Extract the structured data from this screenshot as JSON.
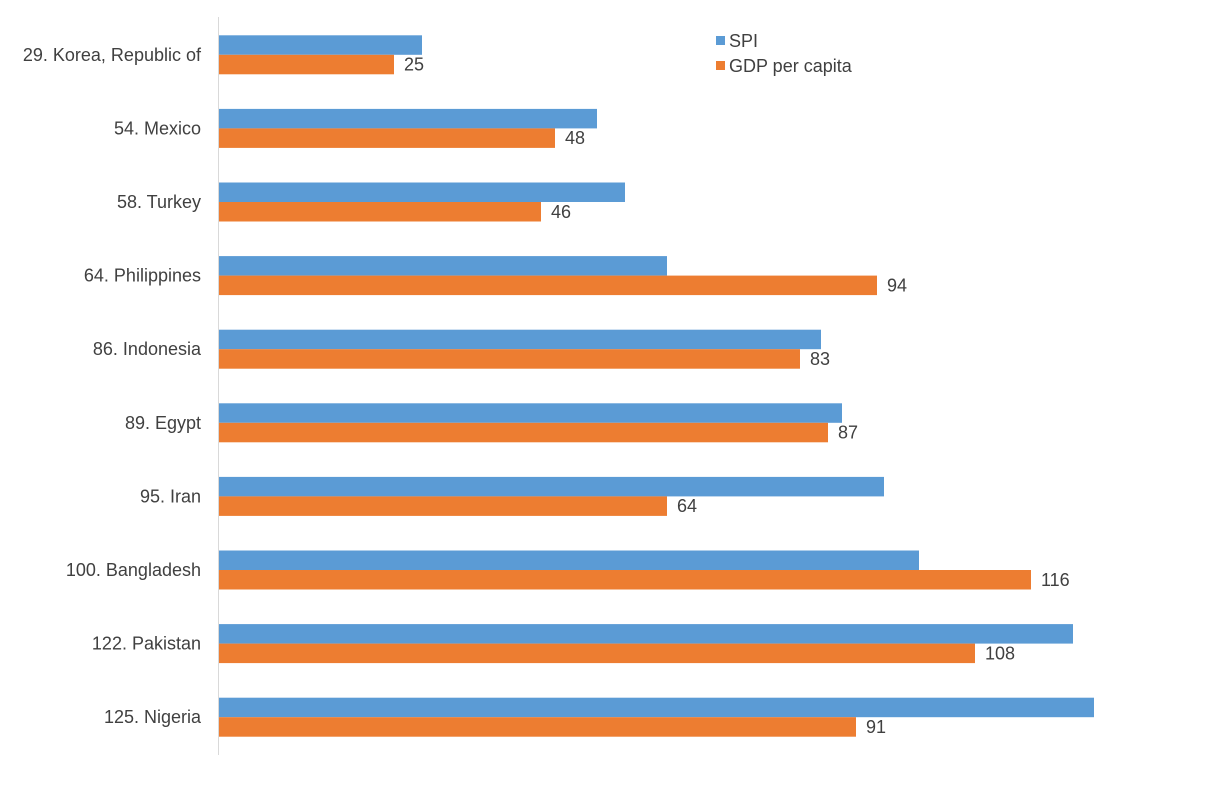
{
  "chart_data": {
    "type": "bar",
    "orientation": "horizontal",
    "title": "",
    "xlabel": "",
    "ylabel": "",
    "xlim": [
      0,
      143
    ],
    "grid": false,
    "legend_placement": "top-right",
    "categories": [
      "29. Korea, Republic of",
      "54. Mexico",
      "58. Turkey",
      "64. Philippines",
      "86. Indonesia",
      "89. Egypt",
      "95. Iran",
      "100. Bangladesh",
      "122. Pakistan",
      "125. Nigeria"
    ],
    "series": [
      {
        "name": "SPI",
        "color": "#5B9BD5",
        "values": [
          29,
          54,
          58,
          64,
          86,
          89,
          95,
          100,
          122,
          125
        ],
        "data_labels": false
      },
      {
        "name": "GDP per capita",
        "color": "#ED7D31",
        "values": [
          25,
          48,
          46,
          94,
          83,
          87,
          64,
          116,
          108,
          91
        ],
        "data_labels": true
      }
    ]
  }
}
